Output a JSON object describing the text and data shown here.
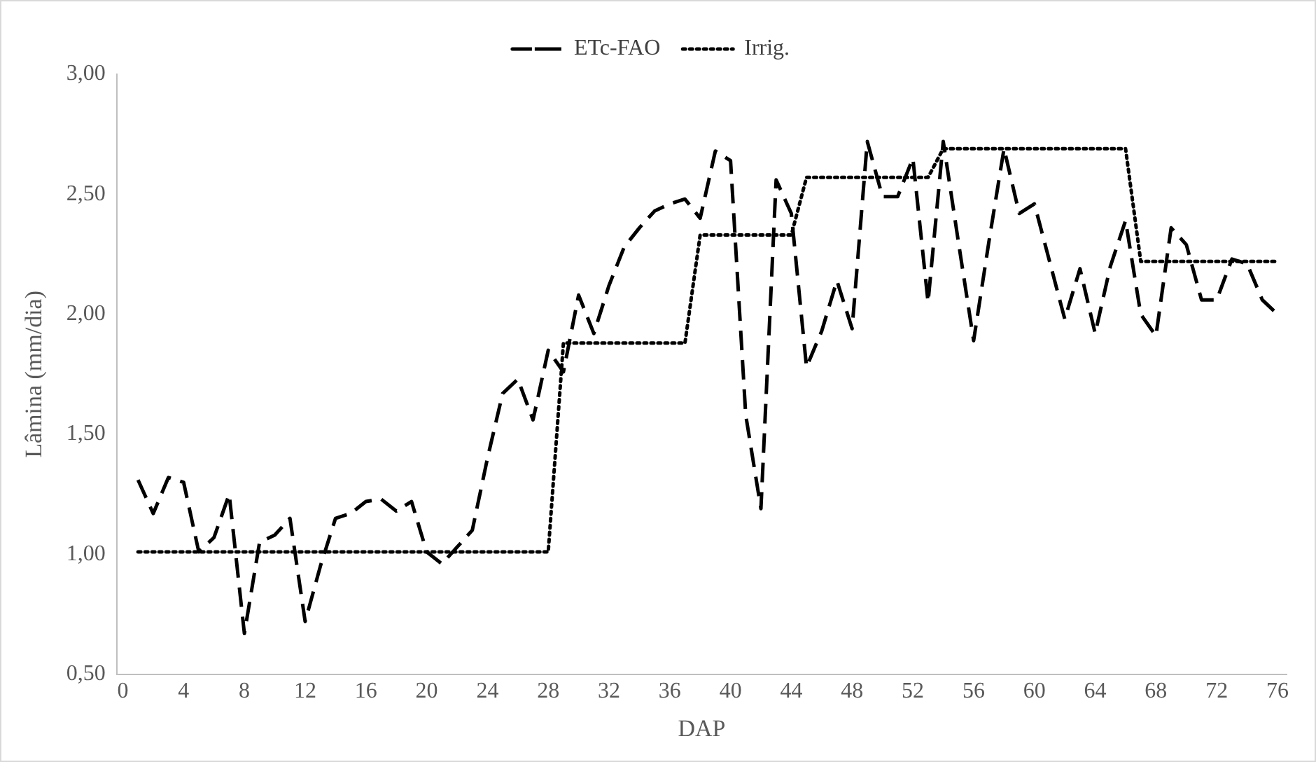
{
  "chart_data": {
    "type": "line",
    "xlabel": "DAP",
    "ylabel": "Lâmina (mm/dia)",
    "x": [
      1,
      2,
      3,
      4,
      5,
      6,
      7,
      8,
      9,
      10,
      11,
      12,
      13,
      14,
      15,
      16,
      17,
      18,
      19,
      20,
      21,
      22,
      23,
      24,
      25,
      26,
      27,
      28,
      29,
      30,
      31,
      32,
      33,
      34,
      35,
      36,
      37,
      38,
      39,
      40,
      41,
      42,
      43,
      44,
      45,
      46,
      47,
      48,
      49,
      50,
      51,
      52,
      53,
      54,
      55,
      56,
      57,
      58,
      59,
      60,
      61,
      62,
      63,
      64,
      65,
      66,
      67,
      68,
      69,
      70,
      71,
      72,
      73,
      74,
      75,
      76
    ],
    "series": [
      {
        "name": "ETc-FAO",
        "color": "#000000",
        "line_style": "dashed",
        "values": [
          1.31,
          1.17,
          1.32,
          1.3,
          1.01,
          1.07,
          1.25,
          0.67,
          1.05,
          1.08,
          1.15,
          0.72,
          0.95,
          1.15,
          1.17,
          1.22,
          1.23,
          1.18,
          1.22,
          1.01,
          0.96,
          1.03,
          1.1,
          1.4,
          1.67,
          1.73,
          1.56,
          1.85,
          1.76,
          2.08,
          1.92,
          2.12,
          2.28,
          2.36,
          2.43,
          2.46,
          2.48,
          2.4,
          2.68,
          2.64,
          1.58,
          1.19,
          2.56,
          2.42,
          1.78,
          1.93,
          2.14,
          1.94,
          2.72,
          2.49,
          2.49,
          2.65,
          2.05,
          2.72,
          2.3,
          1.89,
          2.3,
          2.69,
          2.42,
          2.46,
          2.22,
          1.98,
          2.19,
          1.92,
          2.2,
          2.39,
          2.0,
          1.91,
          2.36,
          2.29,
          2.06,
          2.06,
          2.23,
          2.21,
          2.06,
          2.0
        ]
      },
      {
        "name": "Irrig.",
        "color": "#000000",
        "line_style": "dotted",
        "values": [
          1.01,
          1.01,
          1.01,
          1.01,
          1.01,
          1.01,
          1.01,
          1.01,
          1.01,
          1.01,
          1.01,
          1.01,
          1.01,
          1.01,
          1.01,
          1.01,
          1.01,
          1.01,
          1.01,
          1.01,
          1.01,
          1.01,
          1.01,
          1.01,
          1.01,
          1.01,
          1.01,
          1.01,
          1.88,
          1.88,
          1.88,
          1.88,
          1.88,
          1.88,
          1.88,
          1.88,
          1.88,
          2.33,
          2.33,
          2.33,
          2.33,
          2.33,
          2.33,
          2.33,
          2.57,
          2.57,
          2.57,
          2.57,
          2.57,
          2.57,
          2.57,
          2.57,
          2.57,
          2.69,
          2.69,
          2.69,
          2.69,
          2.69,
          2.69,
          2.69,
          2.69,
          2.69,
          2.69,
          2.69,
          2.69,
          2.69,
          2.22,
          2.22,
          2.22,
          2.22,
          2.22,
          2.22,
          2.22,
          2.22,
          2.22,
          2.22
        ]
      }
    ],
    "xlim": [
      -0.4,
      76.6
    ],
    "xticks": [
      0,
      4,
      8,
      12,
      16,
      20,
      24,
      28,
      32,
      36,
      40,
      44,
      48,
      52,
      56,
      60,
      64,
      68,
      72,
      76
    ],
    "ylim": [
      0.5,
      3.0
    ],
    "yticks": [
      {
        "value": 0.5,
        "label": "0,50"
      },
      {
        "value": 1.0,
        "label": "1,00"
      },
      {
        "value": 1.5,
        "label": "1,50"
      },
      {
        "value": 2.0,
        "label": "2,00"
      },
      {
        "value": 2.5,
        "label": "2,50"
      },
      {
        "value": 3.0,
        "label": "3,00"
      }
    ],
    "grid": false,
    "legend": "top",
    "marker": "none"
  }
}
